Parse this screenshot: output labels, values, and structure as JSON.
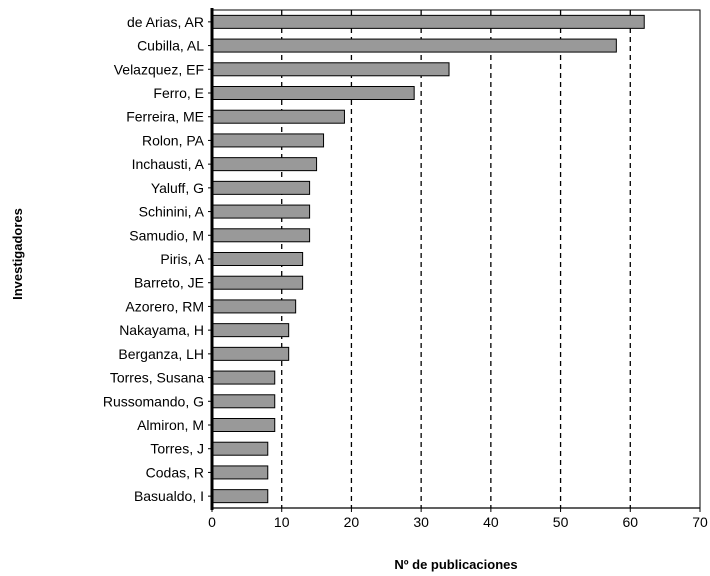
{
  "chart_data": {
    "type": "bar",
    "orientation": "horizontal",
    "title": "",
    "xlabel": "Nº de publicaciones",
    "ylabel": "Investigadores",
    "xlim": [
      0,
      70
    ],
    "xticks": [
      0,
      10,
      20,
      30,
      40,
      50,
      60,
      70
    ],
    "grid": "vertical-dashed",
    "legend": "none",
    "bar_color": "#999999",
    "categories": [
      "de Arias, AR",
      "Cubilla, AL",
      "Velazquez, EF",
      "Ferro, E",
      "Ferreira, ME",
      "Rolon, PA",
      "Inchausti, A",
      "Yaluff, G",
      "Schinini, A",
      "Samudio, M",
      "Piris, A",
      "Barreto, JE",
      "Azorero, RM",
      "Nakayama, H",
      "Berganza, LH",
      "Torres, Susana",
      "Russomando, G",
      "Almiron, M",
      "Torres, J",
      "Codas, R",
      "Basualdo, I"
    ],
    "values": [
      62,
      58,
      34,
      29,
      19,
      16,
      15,
      14,
      14,
      14,
      13,
      13,
      12,
      11,
      11,
      9,
      9,
      9,
      8,
      8,
      8
    ]
  }
}
